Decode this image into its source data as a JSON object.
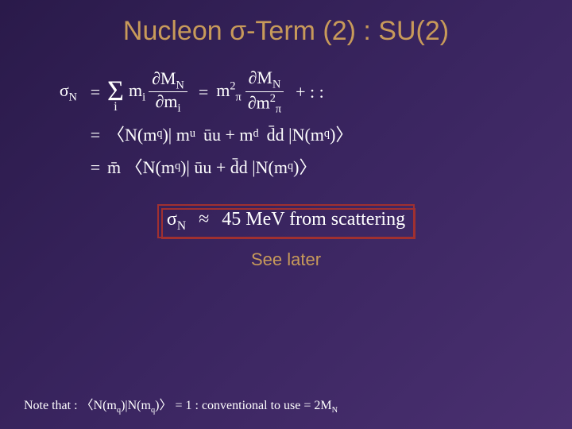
{
  "title": "Nucleon σ-Term (2) : SU(2)",
  "eq": {
    "lhs": "σ",
    "lhs_sub": "N",
    "sum_index": "i",
    "term1_coef": "m",
    "term1_coef_sub": "i",
    "frac1_num_a": "∂M",
    "frac1_num_sub": "N",
    "frac1_den_a": "∂m",
    "frac1_den_sub": "i",
    "term2_coef": "m",
    "term2_coef_sup": "2",
    "term2_coef_sub": "π",
    "frac2_num_a": "∂M",
    "frac2_num_sub": "N",
    "frac2_den_a": "∂m",
    "frac2_den_sup": "2",
    "frac2_den_sub": "π",
    "dots": "+  : :"
  },
  "line2": {
    "pre": "〈N(m",
    "presub": "q",
    "mid1": ")| m",
    "sub_u": "u",
    "ubar_u": "ūu + m",
    "sub_d": "d",
    "dbar_d": "d̄d |N(m",
    "postsub": "q",
    "post": ")〉"
  },
  "line3": {
    "pre": "m̄ 〈N(m",
    "presub": "q",
    "mid": ")| ūu + d̄d |N(m",
    "postsub": "q",
    "post": ")〉"
  },
  "approx": {
    "lhs": "σ",
    "lhs_sub": "N",
    "sym": "≈",
    "val": "45 MeV from scattering"
  },
  "seelater": "See later",
  "footnote": {
    "pre": "Note that : 〈N(m",
    "s1": "q",
    "mid1": ")|N(m",
    "s2": "q",
    "mid2": ")〉 = 1 : conventional to use = 2M",
    "s3": "N"
  },
  "colors": {
    "title": "#c89a5a",
    "text": "#ffffff",
    "box_border": "#a03030",
    "bg_from": "#2a1a4a",
    "bg_to": "#4a3070"
  }
}
